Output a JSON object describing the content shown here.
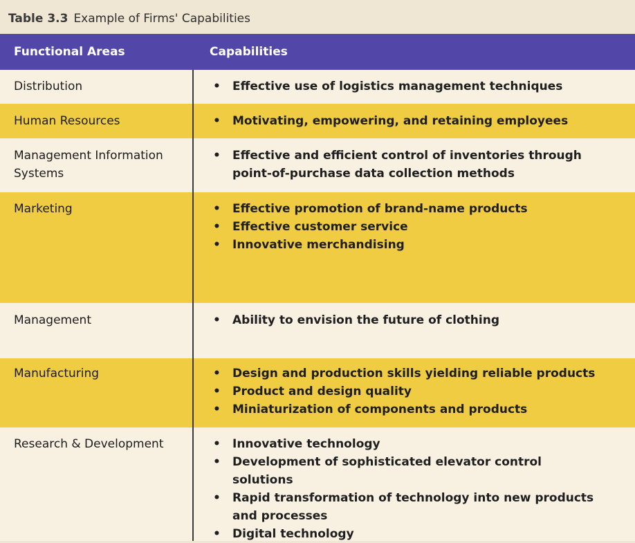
{
  "caption": {
    "number": "Table 3.3",
    "title": "Example of Firms' Capabilities"
  },
  "columns": {
    "area": "Functional Areas",
    "capabilities": "Capabilities"
  },
  "rows": [
    {
      "area": "Distribution",
      "capabilities": [
        "Effective use of logistics management techniques"
      ]
    },
    {
      "area": "Human Resources",
      "capabilities": [
        "Motivating, empowering, and retaining employees"
      ]
    },
    {
      "area": "Management Information Systems",
      "capabilities": [
        "Effective and efficient control of inventories through point-of-purchase data collection methods"
      ]
    },
    {
      "area": "Marketing",
      "capabilities": [
        "Effective promotion of brand-name products",
        "Effective customer service",
        "Innovative merchandising"
      ]
    },
    {
      "area": "Management",
      "capabilities": [
        "Ability to envision the future of clothing"
      ]
    },
    {
      "area": "Manufacturing",
      "capabilities": [
        "Design and production skills yielding reliable products",
        "Product and design quality",
        "Miniaturization of components and products"
      ]
    },
    {
      "area": "Research & Development",
      "capabilities": [
        "Innovative technology",
        "Development of sophisticated elevator control solutions",
        "Rapid transformation of technology into new products and processes",
        "Digital technology"
      ]
    }
  ],
  "colors": {
    "header": "#5247a8",
    "highlight": "#f0cc42",
    "plain": "#f8f1e2"
  }
}
